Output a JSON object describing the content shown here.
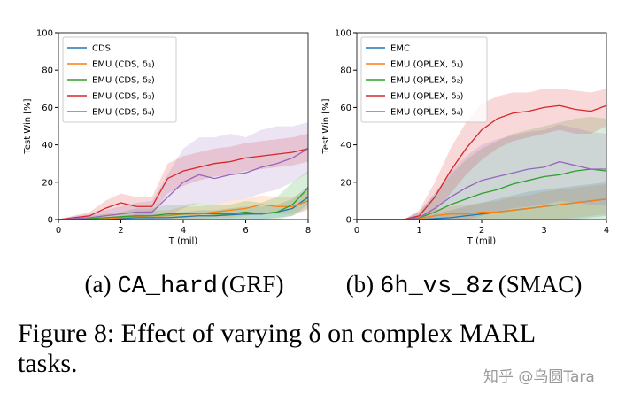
{
  "chart_data": [
    {
      "type": "line",
      "ylabel": "Test Win [%]",
      "xlabel": "T (mil)",
      "xlim": [
        0,
        8
      ],
      "ylim": [
        0,
        100
      ],
      "xticks": [
        0,
        2,
        4,
        6,
        8
      ],
      "yticks": [
        0,
        20,
        40,
        60,
        80,
        100
      ],
      "x": [
        0,
        0.5,
        1,
        1.5,
        2,
        2.5,
        3,
        3.5,
        4,
        4.5,
        5,
        5.5,
        6,
        6.5,
        7,
        7.5,
        8
      ],
      "series": [
        {
          "name": "CDS",
          "color": "#1f77b4",
          "values": [
            0,
            0,
            0,
            0,
            0.5,
            1,
            1,
            1,
            1.5,
            2,
            2,
            2.5,
            3,
            3,
            4,
            6,
            12
          ],
          "lower": [
            0,
            0,
            0,
            0,
            0,
            0,
            0,
            0,
            0,
            0,
            0,
            0,
            0,
            0,
            1,
            2,
            6
          ],
          "upper": [
            0,
            0,
            0,
            1,
            2,
            3,
            3,
            3,
            4,
            5,
            5,
            6,
            7,
            7,
            8,
            11,
            18
          ]
        },
        {
          "name": "EMU (CDS, δ₁)",
          "color": "#ff7f0e",
          "values": [
            0,
            0,
            0,
            0.5,
            1,
            1.5,
            2,
            2,
            3,
            3,
            4,
            5,
            6,
            8,
            7,
            7,
            10
          ],
          "lower": [
            0,
            0,
            0,
            0,
            0,
            0,
            0,
            0,
            0,
            0,
            1,
            1,
            2,
            3,
            3,
            3,
            5
          ],
          "upper": [
            0,
            0,
            1,
            2,
            3,
            4,
            5,
            5,
            7,
            7,
            8,
            10,
            11,
            13,
            12,
            12,
            16
          ]
        },
        {
          "name": "EMU (CDS, δ₂)",
          "color": "#2ca02c",
          "values": [
            0,
            0,
            0.5,
            1,
            1.5,
            2,
            2,
            3,
            3,
            3.5,
            3,
            3,
            4,
            3,
            4,
            8,
            17
          ],
          "lower": [
            0,
            0,
            0,
            0,
            0,
            0,
            0,
            0,
            0,
            0,
            0,
            0,
            0,
            0,
            0,
            2,
            8
          ],
          "upper": [
            0,
            1,
            2,
            3,
            4,
            6,
            6,
            8,
            8,
            9,
            8,
            8,
            10,
            9,
            12,
            20,
            26
          ]
        },
        {
          "name": "EMU (CDS, δ₃)",
          "color": "#d62728",
          "values": [
            0,
            1,
            2,
            6,
            9,
            7,
            7,
            22,
            26,
            28,
            30,
            31,
            33,
            34,
            35,
            36,
            38
          ],
          "lower": [
            0,
            0,
            0,
            2,
            4,
            3,
            3,
            14,
            18,
            21,
            23,
            24,
            26,
            27,
            28,
            29,
            31
          ],
          "upper": [
            0,
            2,
            4,
            10,
            14,
            12,
            12,
            30,
            34,
            36,
            38,
            39,
            41,
            42,
            43,
            44,
            46
          ]
        },
        {
          "name": "EMU (CDS, δ₄)",
          "color": "#9467bd",
          "values": [
            0,
            0.5,
            1,
            2,
            3,
            4,
            4,
            12,
            20,
            24,
            22,
            24,
            25,
            28,
            30,
            33,
            38
          ],
          "lower": [
            0,
            0,
            0,
            0,
            0,
            0,
            0,
            2,
            6,
            9,
            8,
            10,
            11,
            14,
            16,
            20,
            25
          ],
          "upper": [
            0,
            2,
            3,
            5,
            7,
            9,
            10,
            24,
            38,
            44,
            44,
            46,
            44,
            48,
            50,
            50,
            52
          ]
        }
      ],
      "caption_label": "(a)",
      "caption_code": "CA_hard",
      "caption_source": "(GRF)"
    },
    {
      "type": "line",
      "ylabel": "Test Win [%]",
      "xlabel": "T (mil)",
      "xlim": [
        0,
        4
      ],
      "ylim": [
        0,
        100
      ],
      "xticks": [
        0,
        1,
        2,
        3,
        4
      ],
      "yticks": [
        0,
        20,
        40,
        60,
        80,
        100
      ],
      "x": [
        0,
        0.25,
        0.5,
        0.75,
        1,
        1.25,
        1.5,
        1.75,
        2,
        2.25,
        2.5,
        2.75,
        3,
        3.25,
        3.5,
        3.75,
        4
      ],
      "series": [
        {
          "name": "EMC",
          "color": "#1f77b4",
          "values": [
            0,
            0,
            0,
            0,
            0,
            0.5,
            1,
            2,
            3,
            4,
            5,
            6,
            7,
            8,
            9,
            10,
            11
          ],
          "lower": [
            0,
            0,
            0,
            0,
            0,
            0,
            0,
            0,
            0,
            0,
            0,
            0,
            0,
            0,
            0,
            1,
            2
          ],
          "upper": [
            0,
            0,
            0,
            0,
            1,
            3,
            5,
            7,
            9,
            11,
            13,
            15,
            16,
            17,
            18,
            19,
            20
          ]
        },
        {
          "name": "EMU (QPLEX, δ₁)",
          "color": "#ff7f0e",
          "values": [
            0,
            0,
            0,
            0,
            0.5,
            2,
            3,
            3,
            4,
            4,
            5,
            6,
            7,
            8,
            9,
            10,
            11
          ],
          "lower": [
            0,
            0,
            0,
            0,
            0,
            0,
            0,
            0,
            0,
            0,
            0,
            0,
            0,
            0,
            1,
            2,
            3
          ],
          "upper": [
            0,
            0,
            0,
            0,
            2,
            5,
            7,
            8,
            9,
            10,
            12,
            13,
            15,
            16,
            17,
            18,
            19
          ]
        },
        {
          "name": "EMU (QPLEX, δ₂)",
          "color": "#2ca02c",
          "values": [
            0,
            0,
            0,
            0,
            1,
            4,
            8,
            11,
            14,
            16,
            19,
            21,
            23,
            24,
            26,
            27,
            26
          ],
          "lower": [
            0,
            0,
            0,
            0,
            0,
            0,
            0,
            0,
            0,
            0,
            0,
            0,
            0,
            0,
            0,
            0,
            0
          ],
          "upper": [
            0,
            0,
            0,
            0,
            4,
            14,
            24,
            32,
            38,
            42,
            46,
            48,
            50,
            52,
            54,
            55,
            54
          ]
        },
        {
          "name": "EMU (QPLEX, δ₃)",
          "color": "#d62728",
          "values": [
            0,
            0,
            0,
            0,
            2,
            12,
            26,
            38,
            48,
            54,
            57,
            58,
            60,
            61,
            59,
            58,
            61
          ],
          "lower": [
            0,
            0,
            0,
            0,
            0,
            4,
            14,
            24,
            32,
            38,
            42,
            44,
            46,
            48,
            46,
            46,
            50
          ],
          "upper": [
            0,
            0,
            0,
            0,
            5,
            20,
            38,
            52,
            62,
            66,
            68,
            68,
            70,
            70,
            69,
            68,
            70
          ]
        },
        {
          "name": "EMU (QPLEX, δ₄)",
          "color": "#9467bd",
          "values": [
            0,
            0,
            0,
            0,
            1,
            6,
            12,
            17,
            21,
            23,
            25,
            27,
            28,
            31,
            29,
            27,
            27
          ],
          "lower": [
            0,
            0,
            0,
            0,
            0,
            0,
            0,
            0,
            2,
            4,
            6,
            7,
            8,
            10,
            9,
            8,
            8
          ],
          "upper": [
            0,
            0,
            0,
            0,
            4,
            14,
            26,
            34,
            40,
            43,
            45,
            47,
            48,
            51,
            49,
            47,
            46
          ]
        }
      ],
      "caption_label": "(b)",
      "caption_code": "6h_vs_8z",
      "caption_source": "(SMAC)"
    }
  ],
  "figure_caption": [
    "Figure 8: Effect of varying δ on complex MARL",
    "tasks."
  ],
  "watermark": "知乎 @乌圆Tara"
}
